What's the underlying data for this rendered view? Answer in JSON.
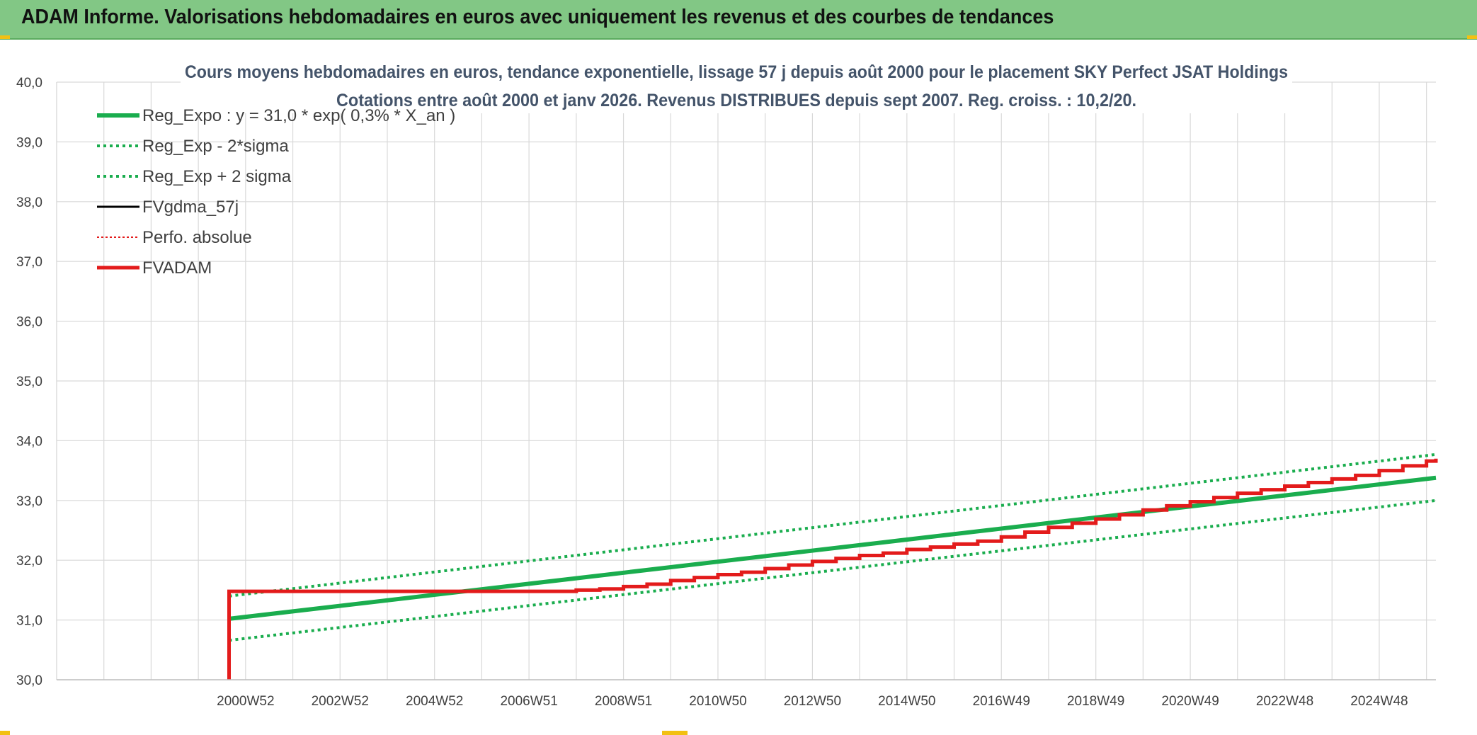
{
  "banner": {
    "title": "ADAM Informe. Valorisations hebdomadaires en euros avec uniquement les revenus et des courbes de tendances"
  },
  "colors": {
    "banner_bg": "#82c785",
    "green": "#1aad4e",
    "red": "#e31b1b",
    "black": "#000000",
    "grid": "#d9d9d9",
    "title": "#44546a"
  },
  "chart_data": {
    "type": "line",
    "title_line1": "Cours moyens hebdomadaires en euros, tendance exponentielle, lissage 57 j depuis août 2000 pour le placement SKY Perfect JSAT Holdings",
    "title_line2": "Cotations entre août 2000 et janv 2026. Revenus DISTRIBUES depuis sept 2007. Reg. croiss. : 10,2/20.",
    "xlabel": "",
    "ylabel": "",
    "ylim": [
      30,
      40
    ],
    "xlim": [
      1997.0,
      2026.2
    ],
    "y_ticks": [
      "30,0",
      "31,0",
      "32,0",
      "33,0",
      "34,0",
      "35,0",
      "36,0",
      "37,0",
      "38,0",
      "39,0",
      "40,0"
    ],
    "x_ticks": [
      {
        "label": "2000W52",
        "x": 2001.0
      },
      {
        "label": "2002W52",
        "x": 2003.0
      },
      {
        "label": "2004W52",
        "x": 2005.0
      },
      {
        "label": "2006W51",
        "x": 2007.0
      },
      {
        "label": "2008W51",
        "x": 2009.0
      },
      {
        "label": "2010W50",
        "x": 2011.0
      },
      {
        "label": "2012W50",
        "x": 2013.0
      },
      {
        "label": "2014W50",
        "x": 2015.0
      },
      {
        "label": "2016W49",
        "x": 2017.0
      },
      {
        "label": "2018W49",
        "x": 2019.0
      },
      {
        "label": "2020W49",
        "x": 2021.0
      },
      {
        "label": "2022W48",
        "x": 2023.0
      },
      {
        "label": "2024W48",
        "x": 2025.0
      }
    ],
    "grid": true,
    "legend_position": "top-left",
    "series": [
      {
        "name": "Reg_Expo : y = 31,0 * exp( 0,3% *  X_an )",
        "style": "solid-thick",
        "color": "#1aad4e",
        "x": [
          2000.65,
          2026.2
        ],
        "y": [
          31.02,
          33.38
        ]
      },
      {
        "name": "Reg_Exp - 2*sigma",
        "style": "dotted",
        "color": "#1aad4e",
        "x": [
          2000.65,
          2026.2
        ],
        "y": [
          30.66,
          33.0
        ]
      },
      {
        "name": "Reg_Exp + 2 sigma",
        "style": "dotted",
        "color": "#1aad4e",
        "x": [
          2000.65,
          2026.2
        ],
        "y": [
          31.4,
          33.77
        ]
      },
      {
        "name": "FVgdma_57j",
        "style": "solid",
        "color": "#000000",
        "x": [],
        "y": []
      },
      {
        "name": "Perfo. absolue",
        "style": "dotted-thin",
        "color": "#e31b1b",
        "x": [],
        "y": []
      },
      {
        "name": "FVADAM",
        "style": "step",
        "color": "#e31b1b",
        "x": [
          2000.65,
          2000.65,
          2007.6,
          2008.0,
          2008.5,
          2009.0,
          2009.5,
          2010.0,
          2010.5,
          2011.0,
          2011.5,
          2012.0,
          2012.5,
          2013.0,
          2013.5,
          2014.0,
          2014.5,
          2015.0,
          2015.5,
          2016.0,
          2016.5,
          2017.0,
          2017.5,
          2018.0,
          2018.5,
          2019.0,
          2019.5,
          2020.0,
          2020.5,
          2021.0,
          2021.5,
          2022.0,
          2022.5,
          2023.0,
          2023.5,
          2024.0,
          2024.5,
          2025.0,
          2025.5,
          2026.0,
          2026.2
        ],
        "y": [
          30.0,
          31.48,
          31.48,
          31.5,
          31.52,
          31.56,
          31.6,
          31.66,
          31.71,
          31.76,
          31.8,
          31.86,
          31.92,
          31.98,
          32.03,
          32.08,
          32.12,
          32.18,
          32.22,
          32.27,
          32.32,
          32.39,
          32.47,
          32.55,
          32.62,
          32.69,
          32.76,
          32.84,
          32.91,
          32.98,
          33.05,
          33.12,
          33.18,
          33.24,
          33.3,
          33.36,
          33.42,
          33.5,
          33.58,
          33.66,
          33.7
        ]
      }
    ]
  }
}
